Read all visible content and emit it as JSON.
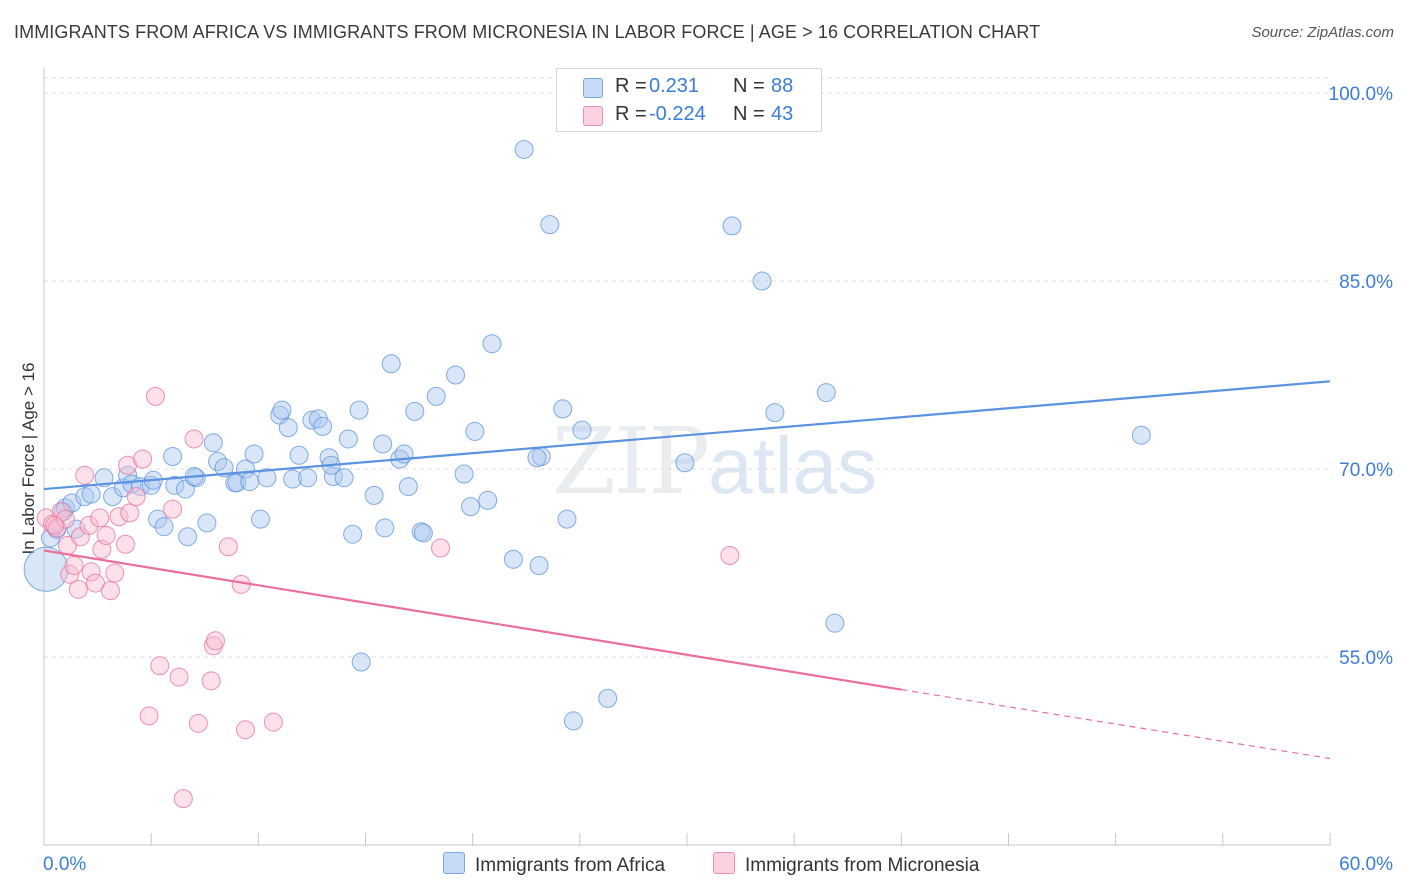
{
  "title": "IMMIGRANTS FROM AFRICA VS IMMIGRANTS FROM MICRONESIA IN LABOR FORCE | AGE > 16 CORRELATION CHART",
  "source": "Source: ZipAtlas.com",
  "watermark": {
    "zip": "ZIP",
    "atlas": "atlas"
  },
  "legend_top": {
    "rows": [
      {
        "r_label": "R =",
        "r_value": "0.231",
        "n_label": "N =",
        "n_value": "88",
        "color": "#aac8f0"
      },
      {
        "r_label": "R =",
        "r_value": "-0.224",
        "n_label": "N =",
        "n_value": "43",
        "color": "#f8bcd0"
      }
    ]
  },
  "legend_bottom": [
    {
      "label": "Immigrants from Africa",
      "color": "#aac8f0"
    },
    {
      "label": "Immigrants from Micronesia",
      "color": "#f8bcd0"
    }
  ],
  "chart_data": {
    "type": "scatter",
    "title": "IMMIGRANTS FROM AFRICA VS IMMIGRANTS FROM MICRONESIA IN LABOR FORCE | AGE > 16 CORRELATION CHART",
    "xlabel": "",
    "ylabel": "In Labor Force | Age > 16",
    "xlim": [
      0,
      60
    ],
    "ylim": [
      40,
      102
    ],
    "x_tick_labels": [
      {
        "value": 0,
        "label": "0.0%"
      },
      {
        "value": 60,
        "label": "60.0%"
      }
    ],
    "y_tick_labels": [
      {
        "value": 55,
        "label": "55.0%"
      },
      {
        "value": 70,
        "label": "70.0%"
      },
      {
        "value": 85,
        "label": "85.0%"
      },
      {
        "value": 100,
        "label": "100.0%"
      }
    ],
    "grid": true,
    "series": [
      {
        "name": "Immigrants from Africa",
        "color": "#5b93e0",
        "fill": "rgba(170,200,240,0.45)",
        "trend": {
          "x0": 0,
          "y0": 68.4,
          "x1": 60,
          "y1": 77.0
        },
        "points": [
          [
            0.1,
            62.0
          ],
          [
            0.3,
            64.5
          ],
          [
            0.6,
            65.2
          ],
          [
            0.9,
            66.6
          ],
          [
            1.0,
            66.9
          ],
          [
            1.3,
            67.3
          ],
          [
            1.5,
            65.2
          ],
          [
            1.9,
            67.8
          ],
          [
            2.2,
            68.0
          ],
          [
            2.8,
            69.3
          ],
          [
            3.2,
            67.8
          ],
          [
            3.7,
            68.5
          ],
          [
            3.9,
            69.5
          ],
          [
            4.1,
            68.8
          ],
          [
            4.5,
            68.6
          ],
          [
            5.0,
            68.7
          ],
          [
            5.1,
            69.1
          ],
          [
            5.3,
            66.0
          ],
          [
            5.6,
            65.4
          ],
          [
            6.0,
            71.0
          ],
          [
            6.1,
            68.7
          ],
          [
            6.6,
            68.4
          ],
          [
            6.7,
            64.6
          ],
          [
            7.1,
            69.3
          ],
          [
            7.6,
            65.7
          ],
          [
            7.9,
            72.1
          ],
          [
            8.1,
            70.6
          ],
          [
            8.4,
            70.1
          ],
          [
            8.9,
            68.9
          ],
          [
            9.0,
            68.9
          ],
          [
            9.4,
            70.0
          ],
          [
            9.6,
            69.0
          ],
          [
            9.8,
            71.2
          ],
          [
            10.1,
            66.0
          ],
          [
            10.4,
            69.3
          ],
          [
            11.0,
            74.3
          ],
          [
            11.1,
            74.7
          ],
          [
            11.4,
            73.3
          ],
          [
            11.6,
            69.2
          ],
          [
            11.9,
            71.1
          ],
          [
            12.3,
            69.3
          ],
          [
            12.5,
            73.9
          ],
          [
            12.8,
            74.0
          ],
          [
            13.0,
            73.4
          ],
          [
            13.3,
            70.9
          ],
          [
            13.5,
            69.4
          ],
          [
            14.0,
            69.3
          ],
          [
            14.2,
            72.4
          ],
          [
            14.4,
            64.8
          ],
          [
            14.7,
            74.7
          ],
          [
            14.8,
            54.6
          ],
          [
            15.4,
            67.9
          ],
          [
            15.8,
            72.0
          ],
          [
            15.9,
            65.3
          ],
          [
            16.2,
            78.4
          ],
          [
            16.6,
            70.8
          ],
          [
            16.8,
            71.2
          ],
          [
            17.0,
            68.6
          ],
          [
            17.3,
            74.6
          ],
          [
            17.6,
            65.0
          ],
          [
            17.7,
            64.9
          ],
          [
            18.3,
            75.8
          ],
          [
            19.2,
            77.5
          ],
          [
            19.6,
            69.6
          ],
          [
            19.9,
            67.0
          ],
          [
            20.1,
            73.0
          ],
          [
            20.7,
            67.5
          ],
          [
            20.9,
            80.0
          ],
          [
            21.9,
            62.8
          ],
          [
            22.4,
            95.5
          ],
          [
            23.1,
            62.3
          ],
          [
            23.6,
            89.5
          ],
          [
            23.2,
            71.0
          ],
          [
            24.2,
            74.8
          ],
          [
            24.4,
            66.0
          ],
          [
            24.7,
            49.9
          ],
          [
            25.1,
            73.1
          ],
          [
            26.3,
            51.7
          ],
          [
            29.9,
            70.5
          ],
          [
            32.1,
            89.4
          ],
          [
            33.5,
            85.0
          ],
          [
            34.1,
            74.5
          ],
          [
            36.5,
            76.1
          ],
          [
            36.9,
            57.7
          ],
          [
            51.2,
            72.7
          ],
          [
            23.0,
            70.9
          ],
          [
            13.4,
            70.3
          ],
          [
            7.0,
            69.4
          ]
        ]
      },
      {
        "name": "Immigrants from Micronesia",
        "color": "#ea6f9a",
        "fill": "rgba(248,188,208,0.45)",
        "trend": {
          "x0": 0,
          "y0": 63.5,
          "x1": 40,
          "y1": 52.4,
          "dash_x1": 60,
          "dash_y1": 46.9
        },
        "points": [
          [
            0.1,
            66.1
          ],
          [
            0.4,
            65.6
          ],
          [
            0.6,
            65.3
          ],
          [
            0.8,
            66.6
          ],
          [
            1.0,
            66.0
          ],
          [
            1.1,
            63.9
          ],
          [
            1.2,
            61.6
          ],
          [
            1.4,
            62.3
          ],
          [
            1.6,
            60.4
          ],
          [
            1.7,
            64.6
          ],
          [
            1.9,
            69.5
          ],
          [
            2.1,
            65.5
          ],
          [
            2.2,
            61.8
          ],
          [
            2.4,
            60.9
          ],
          [
            2.6,
            66.1
          ],
          [
            2.7,
            63.6
          ],
          [
            2.9,
            64.7
          ],
          [
            3.1,
            60.3
          ],
          [
            3.3,
            61.7
          ],
          [
            3.5,
            66.2
          ],
          [
            3.8,
            64.0
          ],
          [
            3.9,
            70.3
          ],
          [
            4.0,
            66.5
          ],
          [
            4.3,
            67.8
          ],
          [
            4.6,
            70.8
          ],
          [
            4.9,
            50.3
          ],
          [
            5.2,
            75.8
          ],
          [
            5.4,
            54.3
          ],
          [
            6.0,
            66.8
          ],
          [
            6.3,
            53.4
          ],
          [
            6.5,
            43.7
          ],
          [
            7.0,
            72.4
          ],
          [
            7.2,
            49.7
          ],
          [
            7.8,
            53.1
          ],
          [
            7.9,
            55.9
          ],
          [
            8.0,
            56.3
          ],
          [
            8.6,
            63.8
          ],
          [
            9.2,
            60.8
          ],
          [
            9.4,
            49.2
          ],
          [
            10.7,
            49.8
          ],
          [
            18.5,
            63.7
          ],
          [
            32.0,
            63.1
          ],
          [
            0.5,
            65.5
          ]
        ]
      }
    ]
  }
}
